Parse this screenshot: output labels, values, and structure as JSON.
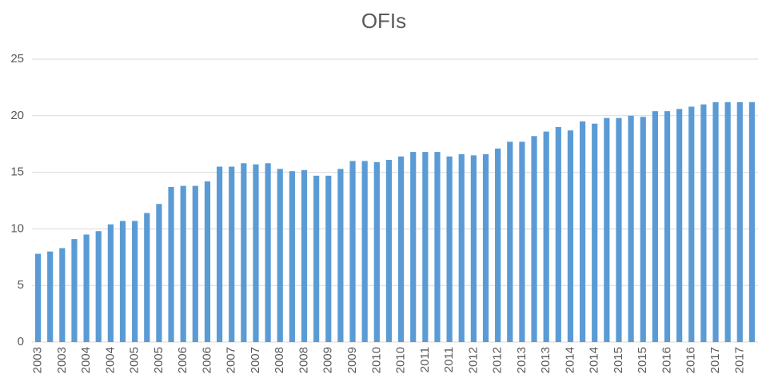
{
  "chart_data": {
    "type": "bar",
    "title": "OFIs",
    "categories": [
      "2003",
      null,
      "2003",
      null,
      "2004",
      null,
      "2004",
      null,
      "2005",
      null,
      "2005",
      null,
      "2006",
      null,
      "2006",
      null,
      "2007",
      null,
      "2007",
      null,
      "2008",
      null,
      "2008",
      null,
      "2009",
      null,
      "2009",
      null,
      "2010",
      null,
      "2010",
      null,
      "2011",
      null,
      "2011",
      null,
      "2012",
      null,
      "2012",
      null,
      "2013",
      null,
      "2013",
      null,
      "2014",
      null,
      "2014",
      null,
      "2015",
      null,
      "2015",
      null,
      "2016",
      null,
      "2016",
      null,
      "2017",
      null,
      "2017",
      null
    ],
    "values": [
      7.8,
      8.0,
      8.3,
      9.1,
      9.5,
      9.8,
      10.4,
      10.7,
      10.7,
      11.4,
      12.2,
      13.7,
      13.8,
      13.8,
      14.2,
      15.5,
      15.5,
      15.8,
      15.7,
      15.8,
      15.3,
      15.1,
      15.2,
      14.7,
      14.7,
      15.3,
      16.0,
      16.0,
      15.9,
      16.1,
      16.4,
      16.8,
      16.8,
      16.8,
      16.4,
      16.6,
      16.5,
      16.6,
      17.1,
      17.7,
      17.7,
      18.2,
      18.6,
      19.0,
      18.7,
      19.5,
      19.3,
      19.8,
      19.8,
      20.0,
      19.9,
      20.4,
      20.4,
      20.6,
      20.8,
      21.0,
      21.2,
      21.2,
      21.2,
      21.2
    ],
    "color": "#5b9bd5",
    "ylim": [
      0,
      25
    ],
    "yticks": [
      0,
      5,
      10,
      15,
      20,
      25
    ],
    "grid": true
  }
}
